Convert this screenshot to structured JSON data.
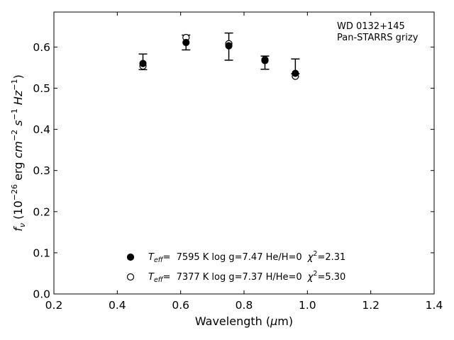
{
  "chart_data": {
    "type": "scatter",
    "annotation": [
      "WD 0132+145",
      "Pan-STARRS grizy"
    ],
    "xlabel": "Wavelength (μm)",
    "ylabel": "fν (10⁻²⁶ erg cm⁻² s⁻¹ Hz⁻¹)",
    "xlim": [
      0.2,
      1.4
    ],
    "ylim": [
      0.0,
      0.685
    ],
    "xticks": [
      "0.2",
      "0.4",
      "0.6",
      "0.8",
      "1.0",
      "1.2",
      "1.4"
    ],
    "yticks": [
      "0.0",
      "0.1",
      "0.2",
      "0.3",
      "0.4",
      "0.5",
      "0.6"
    ],
    "legend_position": "bottom-center",
    "observed": {
      "x": [
        0.481,
        0.617,
        0.752,
        0.866,
        0.962
      ],
      "y": [
        0.564,
        0.611,
        0.601,
        0.562,
        0.553
      ],
      "err": [
        0.019,
        0.018,
        0.033,
        0.016,
        0.018
      ]
    },
    "series": [
      {
        "name": "T_eff= 7595 K log g=7.47 He/H=0 χ²=2.31",
        "marker": "filled-circle",
        "x": [
          0.481,
          0.617,
          0.752,
          0.866,
          0.962
        ],
        "y": [
          0.56,
          0.611,
          0.603,
          0.567,
          0.536
        ]
      },
      {
        "name": "T_eff= 7377 K log g=7.37 H/He=0 χ²=5.30",
        "marker": "open-circle",
        "x": [
          0.481,
          0.617,
          0.752,
          0.866,
          0.962
        ],
        "y": [
          0.554,
          0.623,
          0.608,
          0.569,
          0.529
        ]
      }
    ],
    "legend": [
      {
        "teff_label": "T",
        "teff_sub": "eff",
        "eq": "=",
        "value": "7595 K  log g=7.47  He/H=0",
        "chi": "χ",
        "chi_sup": "2",
        "chi_val": "=2.31"
      },
      {
        "teff_label": "T",
        "teff_sub": "eff",
        "eq": "=",
        "value": "7377 K  log g=7.37  H/He=0",
        "chi": "χ",
        "chi_sup": "2",
        "chi_val": "=5.30"
      }
    ],
    "colors": {
      "marker": "#000000",
      "open_fill": "#ffffff"
    }
  }
}
